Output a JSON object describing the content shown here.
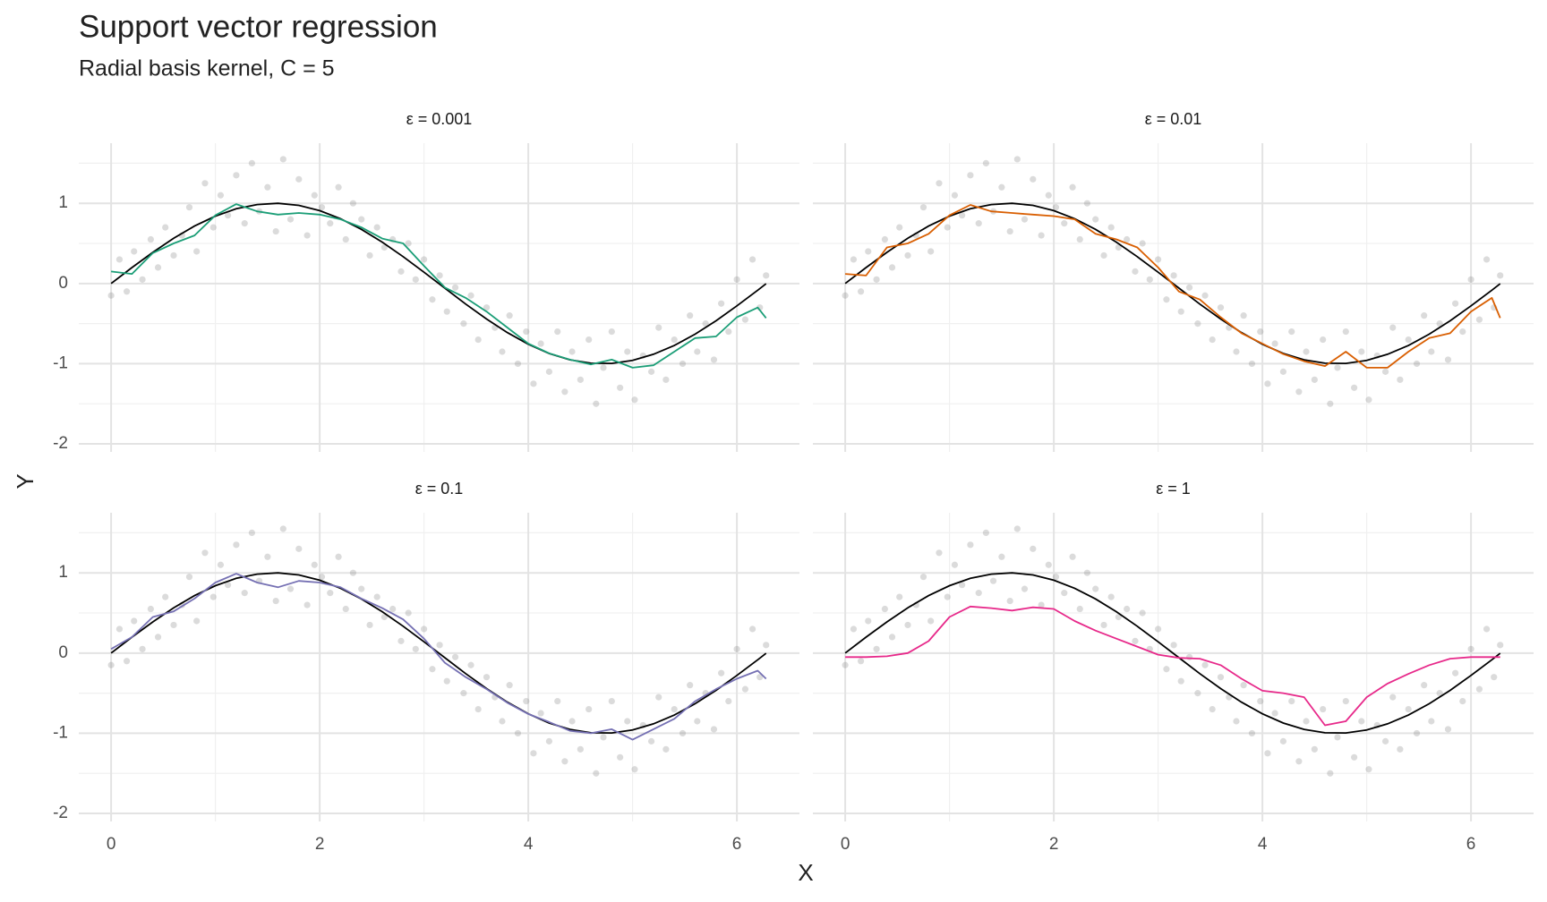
{
  "chart_data": {
    "type": "facet",
    "title": "Support vector regression",
    "subtitle": "Radial basis kernel, C = 5",
    "xlabel": "X",
    "ylabel": "Y",
    "xlim": [
      -0.31,
      6.6
    ],
    "ylim": [
      -2.1,
      1.75
    ],
    "xticks": [
      0,
      2,
      4,
      6
    ],
    "yticks": [
      -2,
      -1,
      0,
      1
    ],
    "grid": true,
    "points": {
      "color": "#888888",
      "x": [
        0.0,
        0.08,
        0.15,
        0.22,
        0.3,
        0.38,
        0.45,
        0.52,
        0.6,
        0.68,
        0.75,
        0.82,
        0.9,
        0.98,
        1.05,
        1.12,
        1.2,
        1.28,
        1.35,
        1.42,
        1.5,
        1.58,
        1.65,
        1.72,
        1.8,
        1.88,
        1.95,
        2.02,
        2.1,
        2.18,
        2.25,
        2.32,
        2.4,
        2.48,
        2.55,
        2.62,
        2.7,
        2.78,
        2.85,
        2.92,
        3.0,
        3.08,
        3.15,
        3.22,
        3.3,
        3.38,
        3.45,
        3.52,
        3.6,
        3.68,
        3.75,
        3.82,
        3.9,
        3.98,
        4.05,
        4.12,
        4.2,
        4.28,
        4.35,
        4.42,
        4.5,
        4.58,
        4.65,
        4.72,
        4.8,
        4.88,
        4.95,
        5.02,
        5.1,
        5.18,
        5.25,
        5.32,
        5.4,
        5.48,
        5.55,
        5.62,
        5.7,
        5.78,
        5.85,
        5.92,
        6.0,
        6.08,
        6.15,
        6.22,
        6.28
      ],
      "y": [
        -0.15,
        0.3,
        -0.1,
        0.4,
        0.05,
        0.55,
        0.2,
        0.7,
        0.35,
        0.6,
        0.95,
        0.4,
        1.25,
        0.7,
        1.1,
        0.85,
        1.35,
        0.75,
        1.5,
        0.9,
        1.2,
        0.65,
        1.55,
        0.8,
        1.3,
        0.6,
        1.1,
        0.95,
        0.75,
        1.2,
        0.55,
        1.0,
        0.8,
        0.35,
        0.7,
        0.45,
        0.55,
        0.15,
        0.5,
        0.05,
        0.3,
        -0.2,
        0.1,
        -0.35,
        -0.05,
        -0.5,
        -0.15,
        -0.7,
        -0.3,
        -0.55,
        -0.85,
        -0.4,
        -1.0,
        -0.6,
        -1.25,
        -0.75,
        -1.1,
        -0.6,
        -1.35,
        -0.85,
        -1.2,
        -0.7,
        -1.5,
        -1.05,
        -0.6,
        -1.3,
        -0.85,
        -1.45,
        -0.9,
        -1.1,
        -0.55,
        -1.2,
        -0.7,
        -1.0,
        -0.4,
        -0.85,
        -0.5,
        -0.95,
        -0.25,
        -0.6,
        0.05,
        -0.45,
        0.3,
        -0.3,
        0.1
      ]
    },
    "curve_x": [
      0,
      0.2,
      0.4,
      0.6,
      0.8,
      1.0,
      1.2,
      1.4,
      1.6,
      1.8,
      2.0,
      2.2,
      2.4,
      2.6,
      2.8,
      3.0,
      3.2,
      3.4,
      3.6,
      3.8,
      4.0,
      4.2,
      4.4,
      4.6,
      4.8,
      5.0,
      5.2,
      5.4,
      5.6,
      5.8,
      6.0,
      6.2,
      6.28
    ],
    "truth": {
      "color": "#000000",
      "values": [
        0,
        0.199,
        0.389,
        0.565,
        0.717,
        0.841,
        0.932,
        0.985,
        1.0,
        0.974,
        0.909,
        0.808,
        0.675,
        0.516,
        0.335,
        0.141,
        -0.058,
        -0.256,
        -0.443,
        -0.612,
        -0.757,
        -0.872,
        -0.952,
        -0.994,
        -0.996,
        -0.959,
        -0.883,
        -0.773,
        -0.631,
        -0.465,
        -0.279,
        -0.083,
        -0.003
      ]
    },
    "panels": [
      {
        "label": "ε = 0.001",
        "color": "#1b9e77",
        "values": [
          0.15,
          0.12,
          0.38,
          0.5,
          0.6,
          0.85,
          0.99,
          0.9,
          0.86,
          0.88,
          0.86,
          0.8,
          0.7,
          0.56,
          0.5,
          0.22,
          -0.05,
          -0.18,
          -0.35,
          -0.55,
          -0.75,
          -0.87,
          -0.95,
          -1.01,
          -0.95,
          -1.05,
          -1.02,
          -0.85,
          -0.68,
          -0.66,
          -0.42,
          -0.3,
          -0.43
        ]
      },
      {
        "label": "ε = 0.01",
        "color": "#d95f02",
        "values": [
          0.12,
          0.1,
          0.45,
          0.5,
          0.62,
          0.85,
          0.98,
          0.9,
          0.88,
          0.86,
          0.84,
          0.8,
          0.62,
          0.55,
          0.45,
          0.2,
          -0.1,
          -0.2,
          -0.42,
          -0.62,
          -0.75,
          -0.88,
          -0.97,
          -1.03,
          -0.85,
          -1.05,
          -1.05,
          -0.85,
          -0.68,
          -0.62,
          -0.35,
          -0.18,
          -0.43
        ]
      },
      {
        "label": "ε = 0.1",
        "color": "#7570b3",
        "values": [
          0.05,
          0.2,
          0.45,
          0.52,
          0.68,
          0.88,
          0.99,
          0.88,
          0.82,
          0.9,
          0.88,
          0.82,
          0.68,
          0.56,
          0.42,
          0.18,
          -0.12,
          -0.3,
          -0.45,
          -0.62,
          -0.76,
          -0.86,
          -0.97,
          -1.0,
          -0.95,
          -1.08,
          -0.95,
          -0.82,
          -0.6,
          -0.45,
          -0.32,
          -0.22,
          -0.32
        ]
      },
      {
        "label": "ε = 1",
        "color": "#e7298a",
        "values": [
          -0.05,
          -0.05,
          -0.04,
          0.0,
          0.15,
          0.45,
          0.58,
          0.56,
          0.53,
          0.57,
          0.55,
          0.4,
          0.28,
          0.18,
          0.08,
          -0.02,
          -0.06,
          -0.07,
          -0.15,
          -0.32,
          -0.47,
          -0.5,
          -0.55,
          -0.9,
          -0.85,
          -0.55,
          -0.38,
          -0.26,
          -0.15,
          -0.07,
          -0.05,
          -0.05,
          -0.05
        ]
      }
    ]
  }
}
